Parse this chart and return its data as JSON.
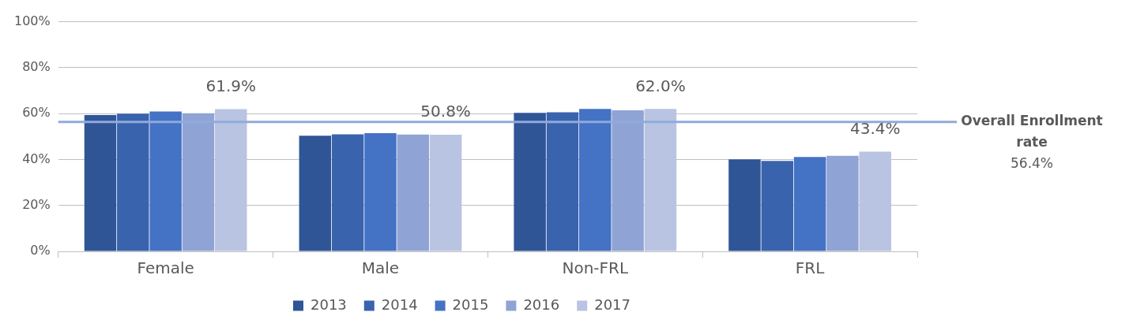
{
  "chart_data": {
    "type": "bar",
    "categories": [
      "Female",
      "Male",
      "Non-FRL",
      "FRL"
    ],
    "series": [
      {
        "name": "2013",
        "color": "#2f5597",
        "values": [
          59.4,
          50.4,
          60.3,
          40.1
        ]
      },
      {
        "name": "2014",
        "color": "#3a63ad",
        "values": [
          60.0,
          51.0,
          60.6,
          39.4
        ]
      },
      {
        "name": "2015",
        "color": "#4472c4",
        "values": [
          60.9,
          51.5,
          62.0,
          41.1
        ]
      },
      {
        "name": "2016",
        "color": "#8fa4d4",
        "values": [
          60.1,
          50.9,
          61.4,
          41.6
        ]
      },
      {
        "name": "2017",
        "color": "#b9c3e2",
        "values": [
          61.9,
          50.8,
          62.0,
          43.4
        ],
        "value_labels": [
          "61.9%",
          "50.8%",
          "62.0%",
          "43.4%"
        ]
      }
    ],
    "ylim": [
      0,
      100
    ],
    "yticks": [
      {
        "value": 0,
        "label": "0%"
      },
      {
        "value": 20,
        "label": "20%"
      },
      {
        "value": 40,
        "label": "40%"
      },
      {
        "value": 60,
        "label": "60%"
      },
      {
        "value": 80,
        "label": "80%"
      },
      {
        "value": 100,
        "label": "100%"
      }
    ],
    "grid": "y",
    "legend": "bottom",
    "ref_lines": [
      {
        "axis": "y",
        "value": 56.4,
        "label": "Overall Enrollment rate",
        "color": "#8faadc"
      }
    ],
    "annotations": [
      "56.4%"
    ]
  }
}
